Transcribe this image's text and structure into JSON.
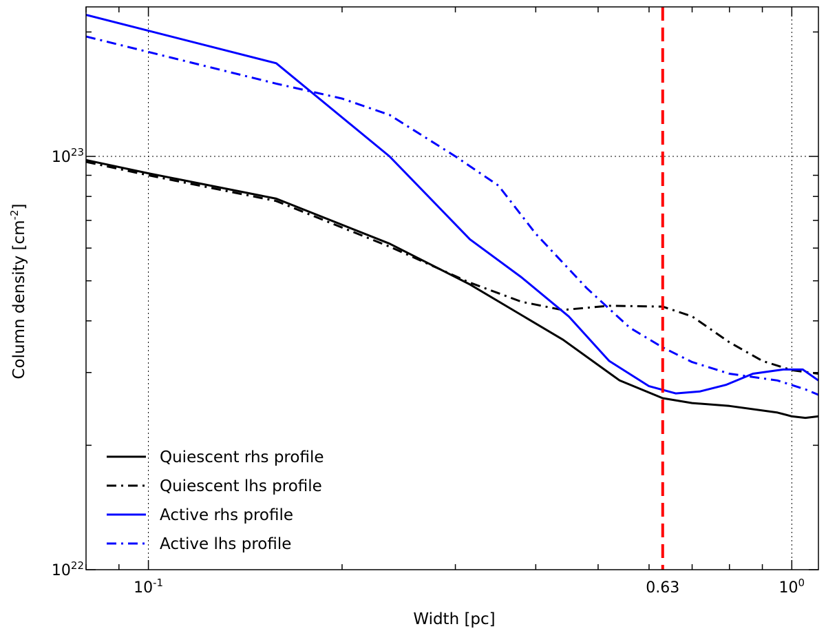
{
  "chart_data": {
    "type": "line",
    "xscale": "log",
    "yscale": "log",
    "xlim": [
      0.08,
      1.1
    ],
    "ylim": [
      1e+22,
      2.3e+23
    ],
    "xlabel": "Width [pc]",
    "ylabel_main": "Column density [cm",
    "ylabel_exp": "-2",
    "ylabel_close": "]",
    "grid": true,
    "legend_position": "lower-left",
    "xticks": [
      {
        "base": "10",
        "exp": "-1",
        "value": 0.1
      },
      {
        "base": "10",
        "exp": "0",
        "value": 1.0
      }
    ],
    "yticks": [
      {
        "base": "10",
        "exp": "22",
        "value": 1e+22
      },
      {
        "base": "10",
        "exp": "23",
        "value": 1e+23
      }
    ],
    "annotation": {
      "label": "0.63",
      "x": 0.63,
      "color": "#ff0000",
      "style": "dashed"
    },
    "series": [
      {
        "name": "Quiescent rhs profile",
        "color": "#000000",
        "dash": "solid",
        "x": [
          0.08,
          0.1,
          0.158,
          0.237,
          0.316,
          0.441,
          0.54,
          0.63,
          0.7,
          0.8,
          0.95,
          1.0,
          1.05,
          1.1
        ],
        "y": [
          9.8e+22,
          9.1e+22,
          7.9e+22,
          6.15e+22,
          4.9e+22,
          3.6e+22,
          2.87e+22,
          2.6e+22,
          2.53e+22,
          2.49e+22,
          2.4e+22,
          2.35e+22,
          2.33e+22,
          2.35e+22
        ]
      },
      {
        "name": "Quiescent lhs profile",
        "color": "#000000",
        "dash": "dashdot",
        "x": [
          0.08,
          0.1,
          0.158,
          0.237,
          0.316,
          0.38,
          0.44,
          0.52,
          0.63,
          0.7,
          0.8,
          0.9,
          1.0,
          1.1
        ],
        "y": [
          9.7e+22,
          9e+22,
          7.8e+22,
          6.05e+22,
          4.95e+22,
          4.45e+22,
          4.25e+22,
          4.35e+22,
          4.33e+22,
          4.1e+22,
          3.55e+22,
          3.2e+22,
          3.04e+22,
          2.98e+22
        ]
      },
      {
        "name": "Active rhs profile",
        "color": "#0000ff",
        "dash": "solid",
        "x": [
          0.08,
          0.158,
          0.237,
          0.316,
          0.38,
          0.45,
          0.52,
          0.6,
          0.66,
          0.72,
          0.79,
          0.87,
          0.97,
          1.04,
          1.1
        ],
        "y": [
          2.2e+23,
          1.68e+23,
          1e+23,
          6.3e+22,
          5.1e+22,
          4.1e+22,
          3.2e+22,
          2.78e+22,
          2.67e+22,
          2.7e+22,
          2.8e+22,
          2.98e+22,
          3.05e+22,
          3.05e+22,
          2.87e+22
        ]
      },
      {
        "name": "Active lhs profile",
        "color": "#0000ff",
        "dash": "dashdot",
        "x": [
          0.08,
          0.158,
          0.2,
          0.237,
          0.3,
          0.35,
          0.4,
          0.48,
          0.56,
          0.63,
          0.7,
          0.8,
          0.95,
          1.05,
          1.1
        ],
        "y": [
          1.95e+23,
          1.5e+23,
          1.38e+23,
          1.26e+23,
          1e+23,
          8.5e+22,
          6.5e+22,
          4.8e+22,
          3.85e+22,
          3.45e+22,
          3.18e+22,
          2.98e+22,
          2.87e+22,
          2.73e+22,
          2.65e+22
        ]
      }
    ]
  }
}
